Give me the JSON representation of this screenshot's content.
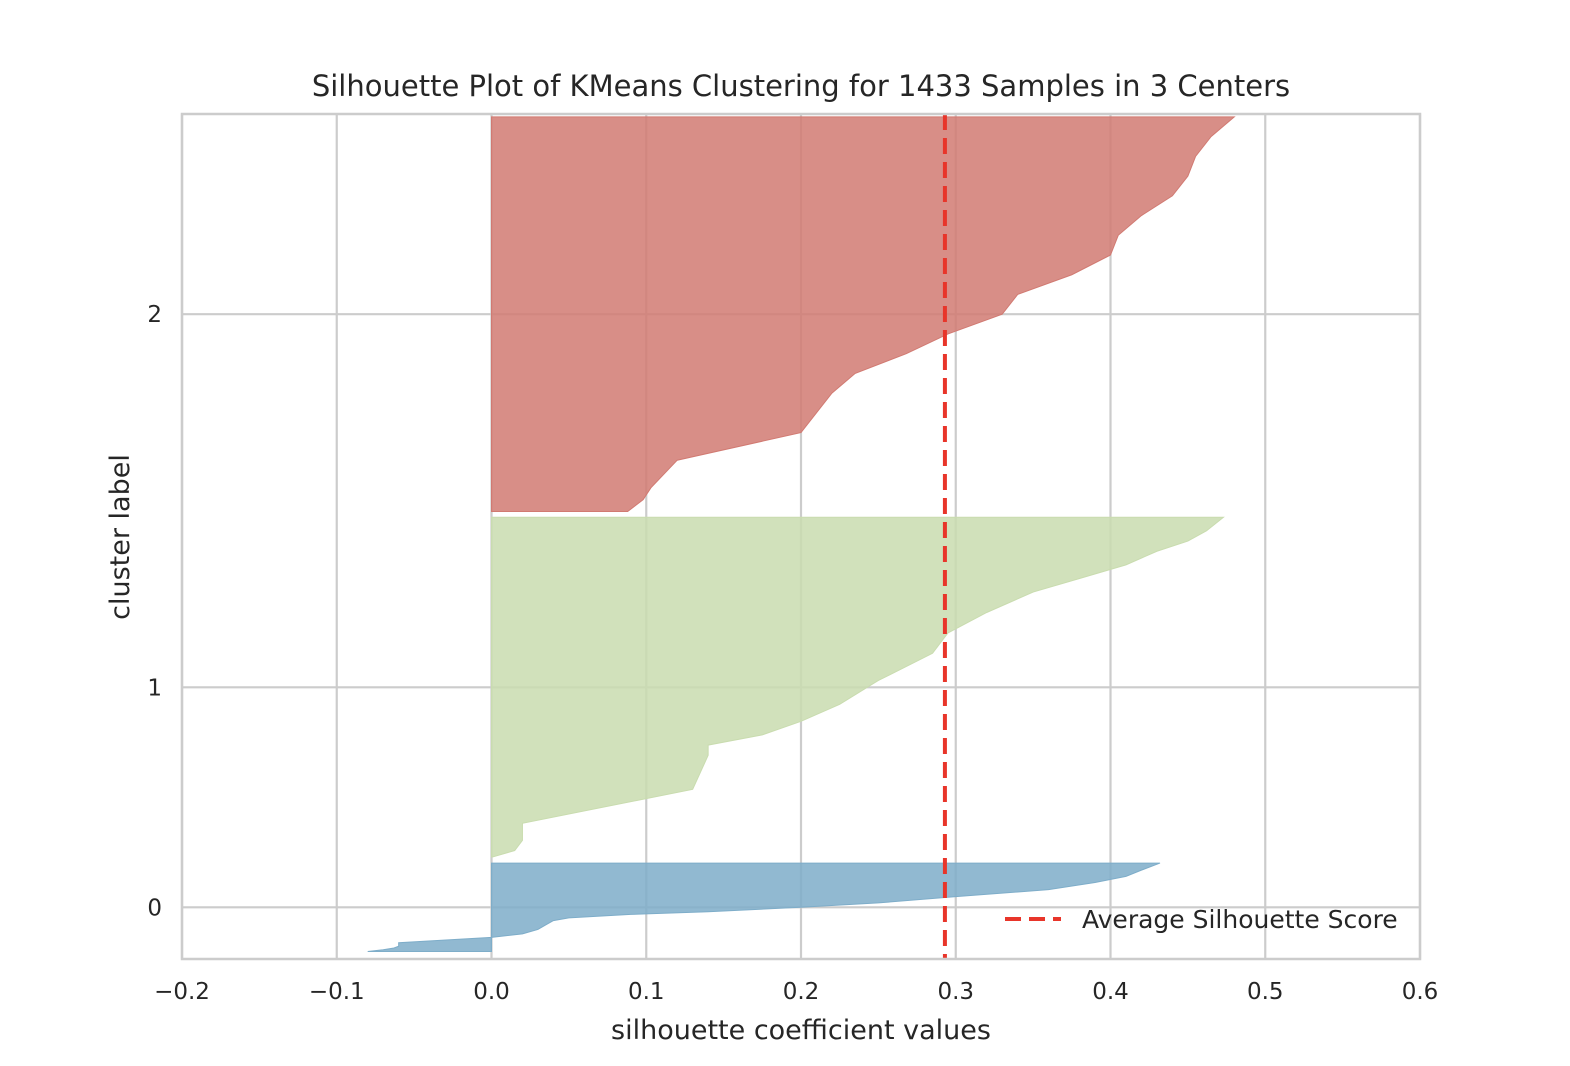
{
  "chart_data": {
    "type": "area",
    "title": "Silhouette Plot of KMeans Clustering for 1433 Samples in 3 Centers",
    "xlabel": "silhouette coefficient values",
    "ylabel": "cluster label",
    "xlim": [
      -0.2,
      0.6
    ],
    "x_ticks": [
      "−0.2",
      "−0.1",
      "0.0",
      "0.1",
      "0.2",
      "0.3",
      "0.4",
      "0.5",
      "0.6"
    ],
    "y_ticks": [
      "0",
      "1",
      "2"
    ],
    "grid": true,
    "legend_position": "lower-right",
    "average_score": {
      "value": 0.293,
      "label": "Average Silhouette Score",
      "color": "#e8352a",
      "style": "dashed"
    },
    "series": [
      {
        "cluster": "0",
        "color": "#7eadc9",
        "samples": 154,
        "sorted_coefficients_profile": [
          [
            0.0,
            -0.08
          ],
          [
            0.02,
            -0.07
          ],
          [
            0.04,
            -0.063
          ],
          [
            0.06,
            -0.06
          ],
          [
            0.1,
            -0.06
          ],
          [
            0.16,
            0.0
          ],
          [
            0.2,
            0.02
          ],
          [
            0.25,
            0.03
          ],
          [
            0.3,
            0.035
          ],
          [
            0.35,
            0.04
          ],
          [
            0.38,
            0.05
          ],
          [
            0.42,
            0.09
          ],
          [
            0.45,
            0.14
          ],
          [
            0.5,
            0.2
          ],
          [
            0.55,
            0.25
          ],
          [
            0.62,
            0.3
          ],
          [
            0.7,
            0.36
          ],
          [
            0.78,
            0.39
          ],
          [
            0.85,
            0.41
          ],
          [
            0.92,
            0.42
          ],
          [
            1.0,
            0.432
          ]
        ]
      },
      {
        "cluster": "1",
        "color": "#c9dcaf",
        "samples": 592,
        "sorted_coefficients_profile": [
          [
            0.0,
            0.0
          ],
          [
            0.02,
            0.015
          ],
          [
            0.05,
            0.02
          ],
          [
            0.1,
            0.02
          ],
          [
            0.2,
            0.13
          ],
          [
            0.3,
            0.14
          ],
          [
            0.33,
            0.14
          ],
          [
            0.36,
            0.175
          ],
          [
            0.4,
            0.2
          ],
          [
            0.45,
            0.225
          ],
          [
            0.52,
            0.25
          ],
          [
            0.6,
            0.285
          ],
          [
            0.66,
            0.295
          ],
          [
            0.72,
            0.32
          ],
          [
            0.78,
            0.35
          ],
          [
            0.82,
            0.38
          ],
          [
            0.86,
            0.41
          ],
          [
            0.9,
            0.43
          ],
          [
            0.93,
            0.45
          ],
          [
            0.96,
            0.462
          ],
          [
            1.0,
            0.473
          ]
        ]
      },
      {
        "cluster": "2",
        "color": "#d17a72",
        "samples": 687,
        "sorted_coefficients_profile": [
          [
            0.0,
            0.088
          ],
          [
            0.03,
            0.098
          ],
          [
            0.06,
            0.103
          ],
          [
            0.13,
            0.12
          ],
          [
            0.2,
            0.2
          ],
          [
            0.25,
            0.21
          ],
          [
            0.3,
            0.22
          ],
          [
            0.35,
            0.235
          ],
          [
            0.4,
            0.268
          ],
          [
            0.45,
            0.295
          ],
          [
            0.5,
            0.33
          ],
          [
            0.55,
            0.34
          ],
          [
            0.6,
            0.375
          ],
          [
            0.65,
            0.4
          ],
          [
            0.7,
            0.405
          ],
          [
            0.75,
            0.42
          ],
          [
            0.8,
            0.44
          ],
          [
            0.85,
            0.45
          ],
          [
            0.9,
            0.455
          ],
          [
            0.95,
            0.465
          ],
          [
            1.0,
            0.48
          ]
        ]
      }
    ]
  }
}
